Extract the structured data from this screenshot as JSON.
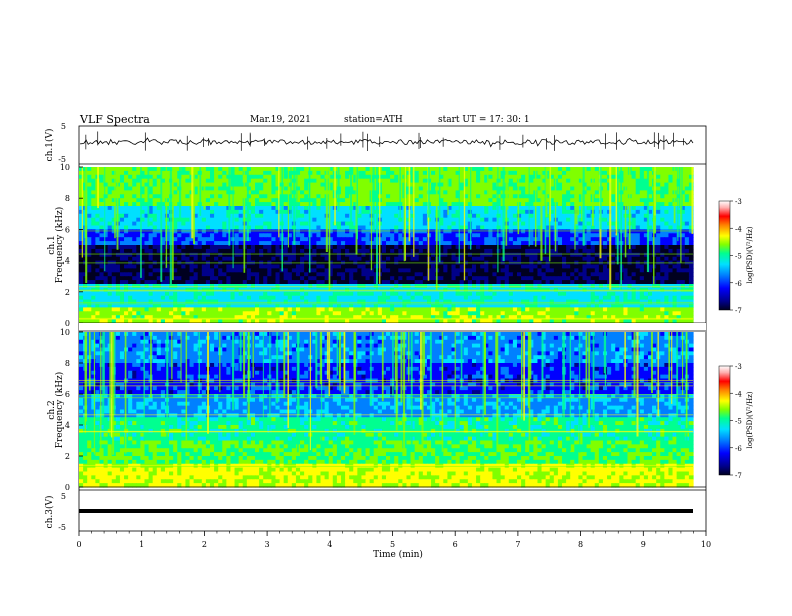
{
  "header": {
    "title": "VLF  Spectra",
    "date": "Mar.19, 2021",
    "station": "station=ATH",
    "start": "start  UT  =   17: 30: 1"
  },
  "chart_data": {
    "type": "heatmap",
    "x": {
      "label": "Time  (min)",
      "range": [
        0,
        10
      ],
      "ticks": [
        "0",
        "1",
        "2",
        "3",
        "4",
        "5",
        "6",
        "7",
        "8",
        "9",
        "10"
      ]
    },
    "panels": [
      {
        "name": "ch.1(V)",
        "kind": "waveform",
        "ylim": [
          -5,
          5
        ],
        "yticks": [
          "5",
          "-5"
        ]
      },
      {
        "name": "ch.1",
        "kind": "spectrogram",
        "ylabel": "Frequency  (kHz)",
        "ylim": [
          0,
          10
        ],
        "yticks": [
          "0",
          "2",
          "4",
          "6",
          "8",
          "10"
        ]
      },
      {
        "name": "ch.2",
        "kind": "spectrogram",
        "ylabel": "Frequency  (kHz)",
        "ylim": [
          0,
          10
        ],
        "yticks": [
          "0",
          "2",
          "4",
          "6",
          "8",
          "10"
        ]
      },
      {
        "name": "ch.3(V)",
        "kind": "waveform",
        "ylim": [
          -5,
          5
        ],
        "yticks": [
          "5",
          "-5"
        ]
      }
    ],
    "colorbar": {
      "label": "log(PSD)(V²/Hz)",
      "range": [
        -7,
        -3
      ],
      "ticks": [
        "-3",
        "-4",
        "-5",
        "-6",
        "-7"
      ],
      "colormap": [
        "#000020",
        "#00008a",
        "#0000ff",
        "#0080ff",
        "#00e0ff",
        "#00ff90",
        "#80ff00",
        "#ffff00",
        "#ff8000",
        "#ff0000",
        "#ffb0b0",
        "#ffffff"
      ]
    }
  }
}
